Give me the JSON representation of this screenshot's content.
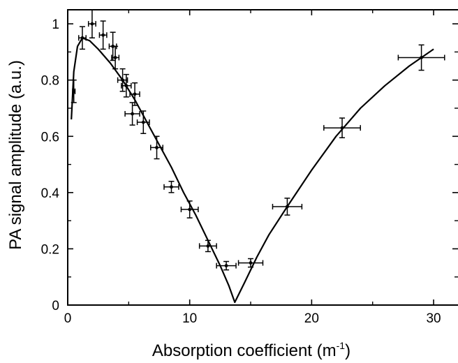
{
  "chart_data": {
    "type": "scatter",
    "title": "",
    "xlabel": "Absorption coefficient (m",
    "xlabel_sup": "-1",
    "xlabel_suffix": ")",
    "ylabel": "PA signal amplitude (a.u.)",
    "xlim": [
      0,
      32
    ],
    "ylim": [
      0,
      1.05
    ],
    "xticks": [
      0,
      10,
      20,
      30
    ],
    "xtick_labels": [
      "0",
      "10",
      "20",
      "30"
    ],
    "yticks": [
      0,
      0.2,
      0.4,
      0.6,
      0.8,
      1.0
    ],
    "ytick_labels": [
      "0",
      "0.2",
      "0.4",
      "0.6",
      "0.8",
      "1"
    ],
    "grid": false,
    "legend": "none",
    "series": [
      {
        "kind": "points_with_errorbars",
        "points": [
          {
            "x": 0.5,
            "y": 0.76,
            "xerr": 0.1,
            "yerr": 0.04
          },
          {
            "x": 1.2,
            "y": 0.95,
            "xerr": 0.3,
            "yerr": 0.04
          },
          {
            "x": 2.0,
            "y": 1.0,
            "xerr": 0.3,
            "yerr": 0.05
          },
          {
            "x": 2.9,
            "y": 0.96,
            "xerr": 0.3,
            "yerr": 0.05
          },
          {
            "x": 3.7,
            "y": 0.92,
            "xerr": 0.3,
            "yerr": 0.05
          },
          {
            "x": 3.9,
            "y": 0.88,
            "xerr": 0.3,
            "yerr": 0.04
          },
          {
            "x": 4.5,
            "y": 0.8,
            "xerr": 0.4,
            "yerr": 0.04
          },
          {
            "x": 4.8,
            "y": 0.78,
            "xerr": 0.4,
            "yerr": 0.04
          },
          {
            "x": 5.5,
            "y": 0.75,
            "xerr": 0.4,
            "yerr": 0.04
          },
          {
            "x": 5.3,
            "y": 0.68,
            "xerr": 0.6,
            "yerr": 0.04
          },
          {
            "x": 6.2,
            "y": 0.65,
            "xerr": 0.5,
            "yerr": 0.04
          },
          {
            "x": 7.3,
            "y": 0.56,
            "xerr": 0.5,
            "yerr": 0.04
          },
          {
            "x": 8.5,
            "y": 0.42,
            "xerr": 0.6,
            "yerr": 0.02
          },
          {
            "x": 10.0,
            "y": 0.34,
            "xerr": 0.7,
            "yerr": 0.03
          },
          {
            "x": 11.5,
            "y": 0.21,
            "xerr": 0.7,
            "yerr": 0.02
          },
          {
            "x": 13.0,
            "y": 0.14,
            "xerr": 0.8,
            "yerr": 0.015
          },
          {
            "x": 15.0,
            "y": 0.15,
            "xerr": 1.0,
            "yerr": 0.015
          },
          {
            "x": 18.0,
            "y": 0.35,
            "xerr": 1.2,
            "yerr": 0.03
          },
          {
            "x": 22.5,
            "y": 0.63,
            "xerr": 1.5,
            "yerr": 0.035
          },
          {
            "x": 29.0,
            "y": 0.88,
            "xerr": 1.9,
            "yerr": 0.045
          }
        ]
      },
      {
        "kind": "fitted_curve",
        "x": [
          0.3,
          0.5,
          0.8,
          1.2,
          1.8,
          2.5,
          3.5,
          4.5,
          5.5,
          6.5,
          7.5,
          8.5,
          9.5,
          10.5,
          11.5,
          12.5,
          13.2,
          13.7,
          14.5,
          15.5,
          16.5,
          18,
          20,
          22,
          24,
          26,
          28,
          30
        ],
        "y": [
          0.66,
          0.83,
          0.92,
          0.95,
          0.94,
          0.91,
          0.86,
          0.8,
          0.73,
          0.65,
          0.57,
          0.49,
          0.4,
          0.32,
          0.23,
          0.14,
          0.07,
          0.01,
          0.08,
          0.17,
          0.25,
          0.35,
          0.48,
          0.6,
          0.7,
          0.78,
          0.85,
          0.91
        ]
      }
    ]
  }
}
